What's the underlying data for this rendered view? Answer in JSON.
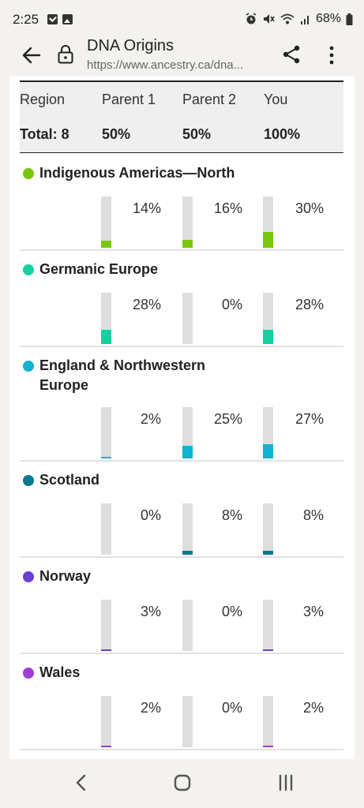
{
  "status_bar": {
    "time": "2:25",
    "battery": "68%",
    "icons": [
      "check-square-icon",
      "image-icon",
      "alarm-icon",
      "mute-icon",
      "wifi-icon",
      "signal-icon",
      "battery-icon"
    ]
  },
  "browser": {
    "title": "DNA Origins",
    "url": "https://www.ancestry.ca/dna..."
  },
  "table": {
    "headers": [
      "Region",
      "Parent 1",
      "Parent 2",
      "You"
    ],
    "totals": [
      "Total: 8",
      "50%",
      "50%",
      "100%"
    ]
  },
  "regions": [
    {
      "name": "Indigenous Americas—North",
      "color": "#7ac70c",
      "values": [
        "14%",
        "16%",
        "30%"
      ],
      "fractions": [
        0.14,
        0.16,
        0.3
      ]
    },
    {
      "name": "Germanic Europe",
      "color": "#12d1a0",
      "values": [
        "28%",
        "0%",
        "28%"
      ],
      "fractions": [
        0.28,
        0.0,
        0.28
      ]
    },
    {
      "name": "England & Northwestern Europe",
      "name_line1": "England & Northwestern",
      "name_line2": "Europe",
      "color": "#12b3cf",
      "values": [
        "2%",
        "25%",
        "27%"
      ],
      "fractions": [
        0.02,
        0.25,
        0.27
      ]
    },
    {
      "name": "Scotland",
      "color": "#0b7a8f",
      "values": [
        "0%",
        "8%",
        "8%"
      ],
      "fractions": [
        0.0,
        0.08,
        0.08
      ]
    },
    {
      "name": "Norway",
      "color": "#6a3fd4",
      "values": [
        "3%",
        "0%",
        "3%"
      ],
      "fractions": [
        0.03,
        0.0,
        0.03
      ]
    },
    {
      "name": "Wales",
      "color": "#9b3fd4",
      "values": [
        "2%",
        "0%",
        "2%"
      ],
      "fractions": [
        0.02,
        0.0,
        0.02
      ]
    }
  ]
}
